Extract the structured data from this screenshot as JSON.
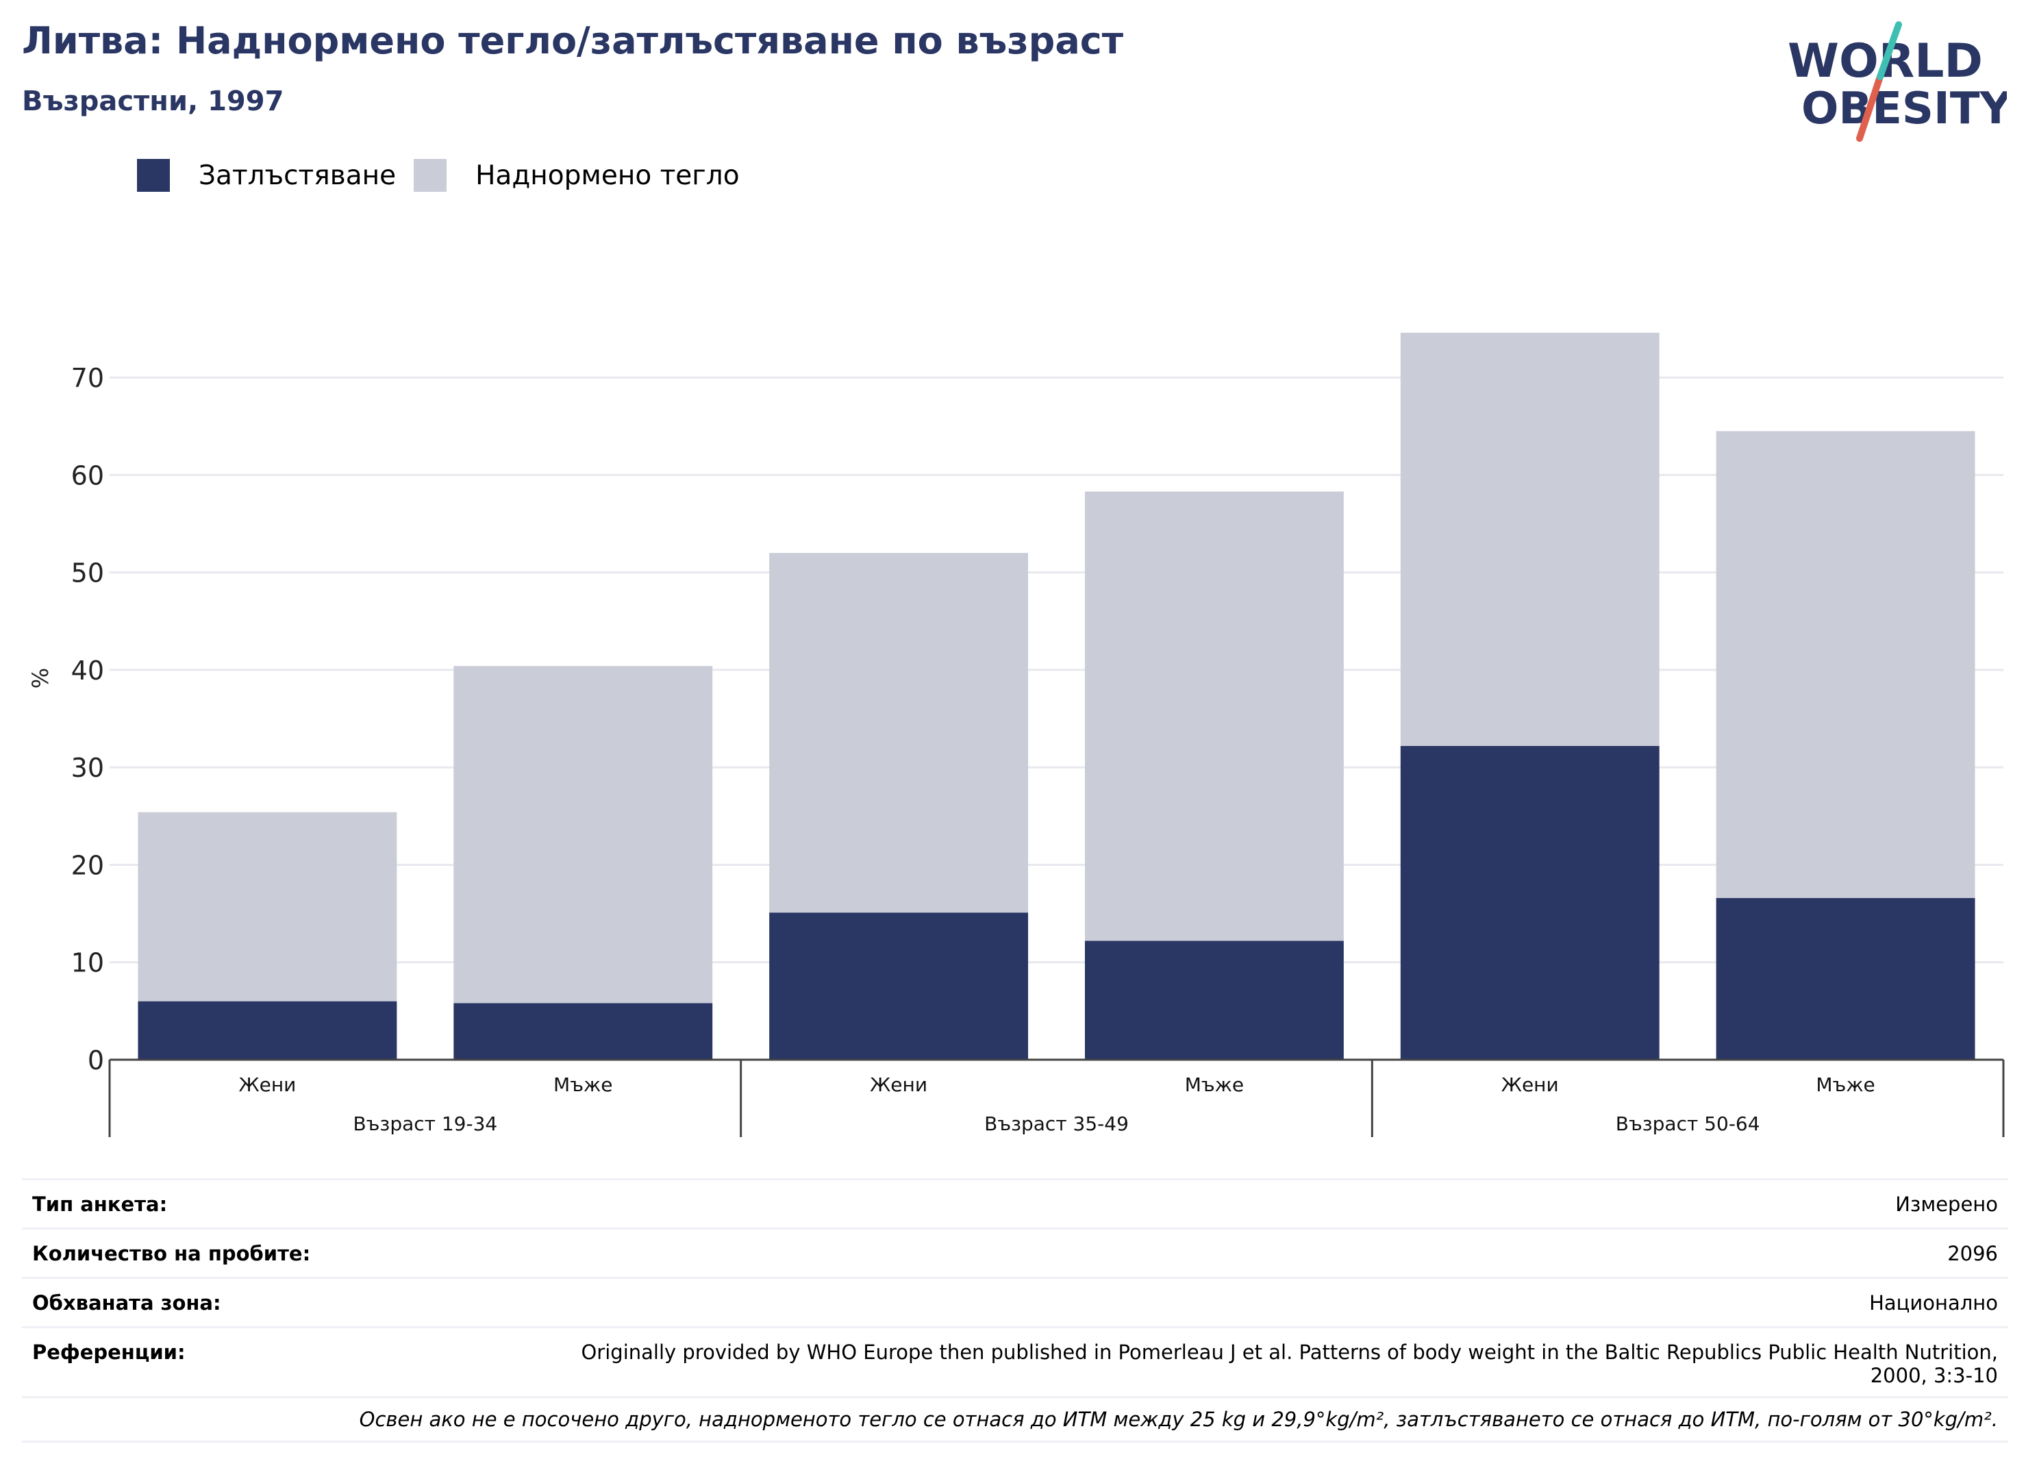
{
  "header": {
    "title": "Литва: Наднормено тегло/затлъстяване по възраст",
    "subtitle": "Възрастни, 1997"
  },
  "logo": {
    "line1": "WORLD",
    "line2": "OBESITY"
  },
  "colors": {
    "obesity": "#2a3663",
    "overweight": "#cacdd8",
    "accent_red": "#e0604e",
    "accent_teal": "#3fbfb3",
    "grid": "#e8e9ee",
    "axis": "#444444"
  },
  "chart_data": {
    "type": "bar",
    "stacked": true,
    "title": "Литва: Наднормено тегло/затлъстяване по възраст",
    "subtitle": "Възрастни, 1997",
    "ylabel": "%",
    "ylim": [
      0,
      75
    ],
    "yticks": [
      0,
      10,
      20,
      30,
      40,
      50,
      60,
      70
    ],
    "grid": true,
    "legend_position": "top-left",
    "categories": [
      "Жени",
      "Мъже",
      "Жени",
      "Мъже",
      "Жени",
      "Мъже"
    ],
    "groups": [
      {
        "label": "Възраст 19-34",
        "span": [
          0,
          1
        ]
      },
      {
        "label": "Възраст 35-49",
        "span": [
          2,
          3
        ]
      },
      {
        "label": "Възраст 50-64",
        "span": [
          4,
          5
        ]
      }
    ],
    "series": [
      {
        "name": "Затлъстяване",
        "values": [
          6.0,
          5.8,
          15.1,
          12.2,
          32.2,
          16.6
        ]
      },
      {
        "name": "Наднормено тегло",
        "values": [
          19.4,
          34.6,
          36.9,
          46.1,
          42.4,
          47.9
        ]
      }
    ]
  },
  "info": {
    "survey_type": {
      "label": "Тип анкета:",
      "value": "Измерено"
    },
    "sample_size": {
      "label": "Количество на пробите:",
      "value": "2096"
    },
    "area": {
      "label": "Обхваната зона:",
      "value": "Национално"
    },
    "references": {
      "label": "Референции:",
      "value": "Originally provided by WHO Europe then published in Pomerleau J et al. Patterns of body weight in the Baltic Republics Public Health Nutrition, 2000, 3:3-10"
    },
    "footnote": "Освен ако не е посочено друго, наднорменото тегло се отнася до ИТМ между 25 kg и 29,9°kg/m², затлъстяването се отнася до ИТМ, по-голям от 30°kg/m²."
  }
}
